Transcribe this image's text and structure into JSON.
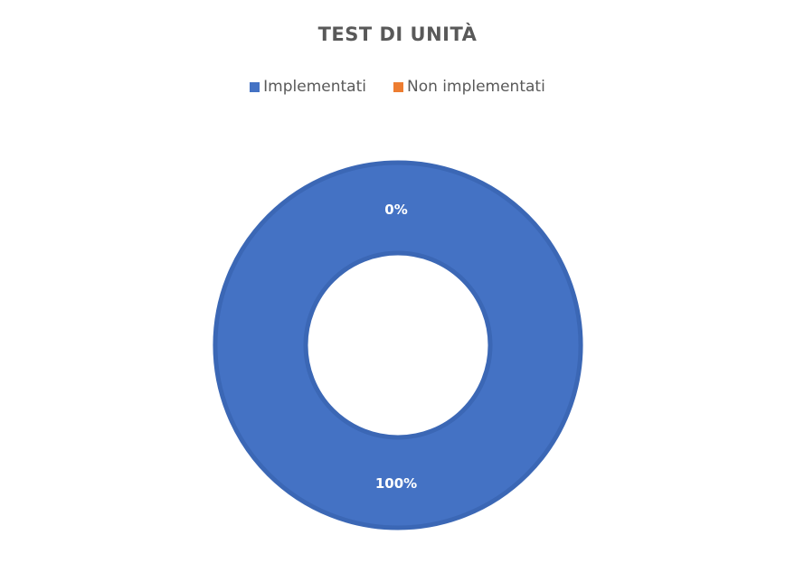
{
  "chart_data": {
    "type": "pie",
    "variant": "donut",
    "title": "TEST DI UNITÀ",
    "categories": [
      "Non implementati",
      "Implementati"
    ],
    "values": [
      0,
      100
    ],
    "value_labels": [
      "0%",
      "100%"
    ],
    "colors": [
      "#ED7D31",
      "#4472C4"
    ],
    "legend": {
      "placement": "top",
      "entries": [
        {
          "label": "Implementati",
          "color": "#4472C4"
        },
        {
          "label": "Non implementati",
          "color": "#ED7D31"
        }
      ]
    }
  }
}
